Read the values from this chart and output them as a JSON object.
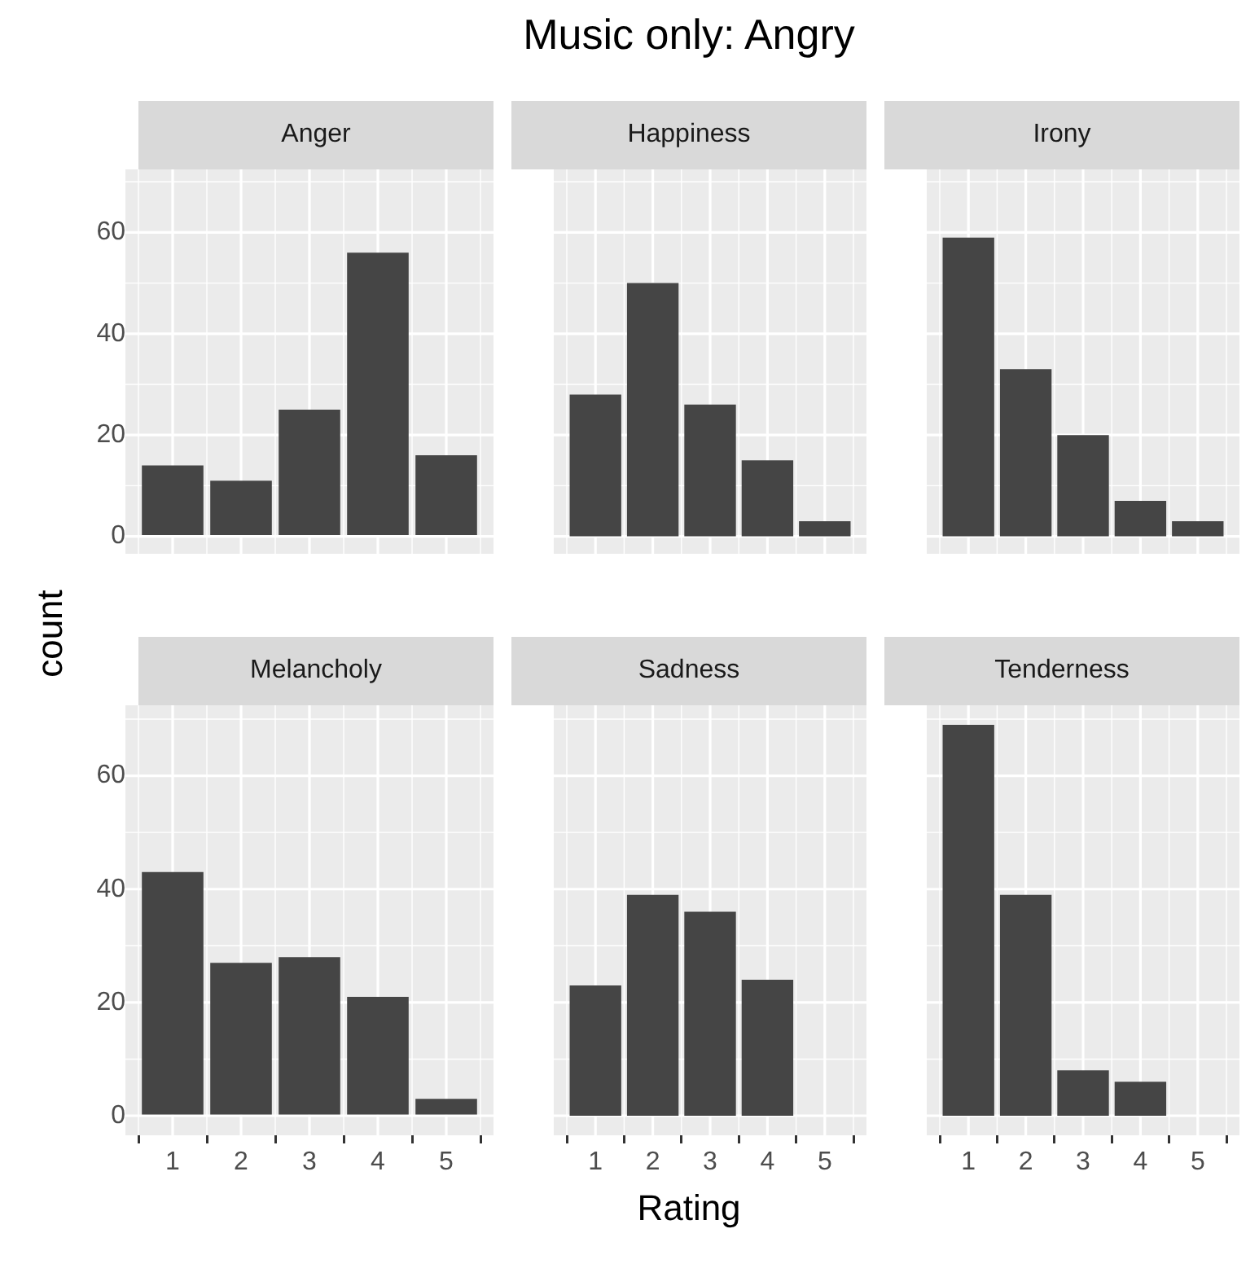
{
  "chart_data": [
    {
      "type": "bar",
      "title": "Anger",
      "ylabel": "count",
      "categories": [
        "1",
        "2",
        "3",
        "4",
        "5"
      ],
      "values": [
        14,
        11,
        25,
        56,
        16
      ],
      "color": "#454545",
      "ylim": [
        -3.45,
        72.45
      ],
      "yticks": [
        0,
        20,
        40,
        60
      ],
      "grid": true,
      "tick_labels": "y"
    },
    {
      "type": "bar",
      "title": "Happiness",
      "annotations": [
        "Music only: Angry"
      ],
      "categories": [
        "1",
        "2",
        "3",
        "4",
        "5"
      ],
      "values": [
        28,
        50,
        26,
        15,
        3
      ],
      "color": "#454545",
      "ylim": [
        -3.45,
        72.45
      ],
      "yticks": [
        0,
        20,
        40,
        60
      ],
      "grid": true,
      "tick_labels": false
    },
    {
      "type": "bar",
      "title": "Irony",
      "categories": [
        "1",
        "2",
        "3",
        "4",
        "5"
      ],
      "values": [
        59,
        33,
        20,
        7,
        3
      ],
      "color": "#454545",
      "ylim": [
        -3.45,
        72.45
      ],
      "yticks": [
        0,
        20,
        40,
        60
      ],
      "grid": true,
      "tick_labels": false
    },
    {
      "type": "bar",
      "title": "Melancholy",
      "categories": [
        "1",
        "2",
        "3",
        "4",
        "5"
      ],
      "values": [
        43,
        27,
        28,
        21,
        3
      ],
      "color": "#454545",
      "ylim": [
        -3.45,
        72.45
      ],
      "yticks": [
        0,
        20,
        40,
        60
      ],
      "grid": true
    },
    {
      "type": "bar",
      "title": "Sadness",
      "xlabel": "Rating",
      "categories": [
        "1",
        "2",
        "3",
        "4",
        "5"
      ],
      "values": [
        23,
        39,
        36,
        24,
        0
      ],
      "color": "#454545",
      "ylim": [
        -3.45,
        72.45
      ],
      "yticks": [
        0,
        20,
        40,
        60
      ],
      "grid": true,
      "tick_labels": "x"
    },
    {
      "type": "bar",
      "title": "Tenderness",
      "categories": [
        "1",
        "2",
        "3",
        "4",
        "5"
      ],
      "values": [
        69,
        39,
        8,
        6,
        0
      ],
      "color": "#454545",
      "ylim": [
        -3.45,
        72.45
      ],
      "yticks": [
        0,
        20,
        40,
        60
      ],
      "grid": true,
      "tick_labels": "x"
    }
  ]
}
